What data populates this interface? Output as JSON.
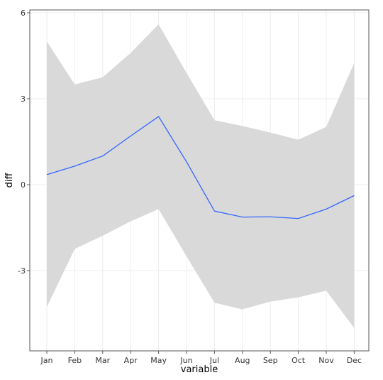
{
  "chart_data": {
    "type": "line",
    "xlabel": "variable",
    "ylabel": "diff",
    "categories": [
      "Jan",
      "Feb",
      "Mar",
      "Apr",
      "May",
      "Jun",
      "Jul",
      "Aug",
      "Sep",
      "Oct",
      "Nov",
      "Dec"
    ],
    "ylim": [
      -5.8,
      6.1
    ],
    "yticks": [
      {
        "value": -3,
        "label": "-3"
      },
      {
        "value": 0,
        "label": "0"
      },
      {
        "value": 3,
        "label": "3"
      },
      {
        "value": 6,
        "label": "6"
      }
    ],
    "grid": true,
    "series": [
      {
        "values": [
          0.35,
          0.65,
          1.0,
          1.7,
          2.38,
          0.8,
          -0.92,
          -1.13,
          -1.12,
          -1.18,
          -0.85,
          -0.38
        ],
        "color": "#3366ff"
      }
    ],
    "band": {
      "upper": [
        5.0,
        3.5,
        3.75,
        4.6,
        5.6,
        3.9,
        2.25,
        2.05,
        1.82,
        1.57,
        2.02,
        4.25
      ],
      "lower": [
        -4.27,
        -2.24,
        -1.78,
        -1.28,
        -0.85,
        -2.5,
        -4.12,
        -4.35,
        -4.08,
        -3.93,
        -3.7,
        -5.0
      ],
      "color": "#d9d9d9"
    }
  }
}
